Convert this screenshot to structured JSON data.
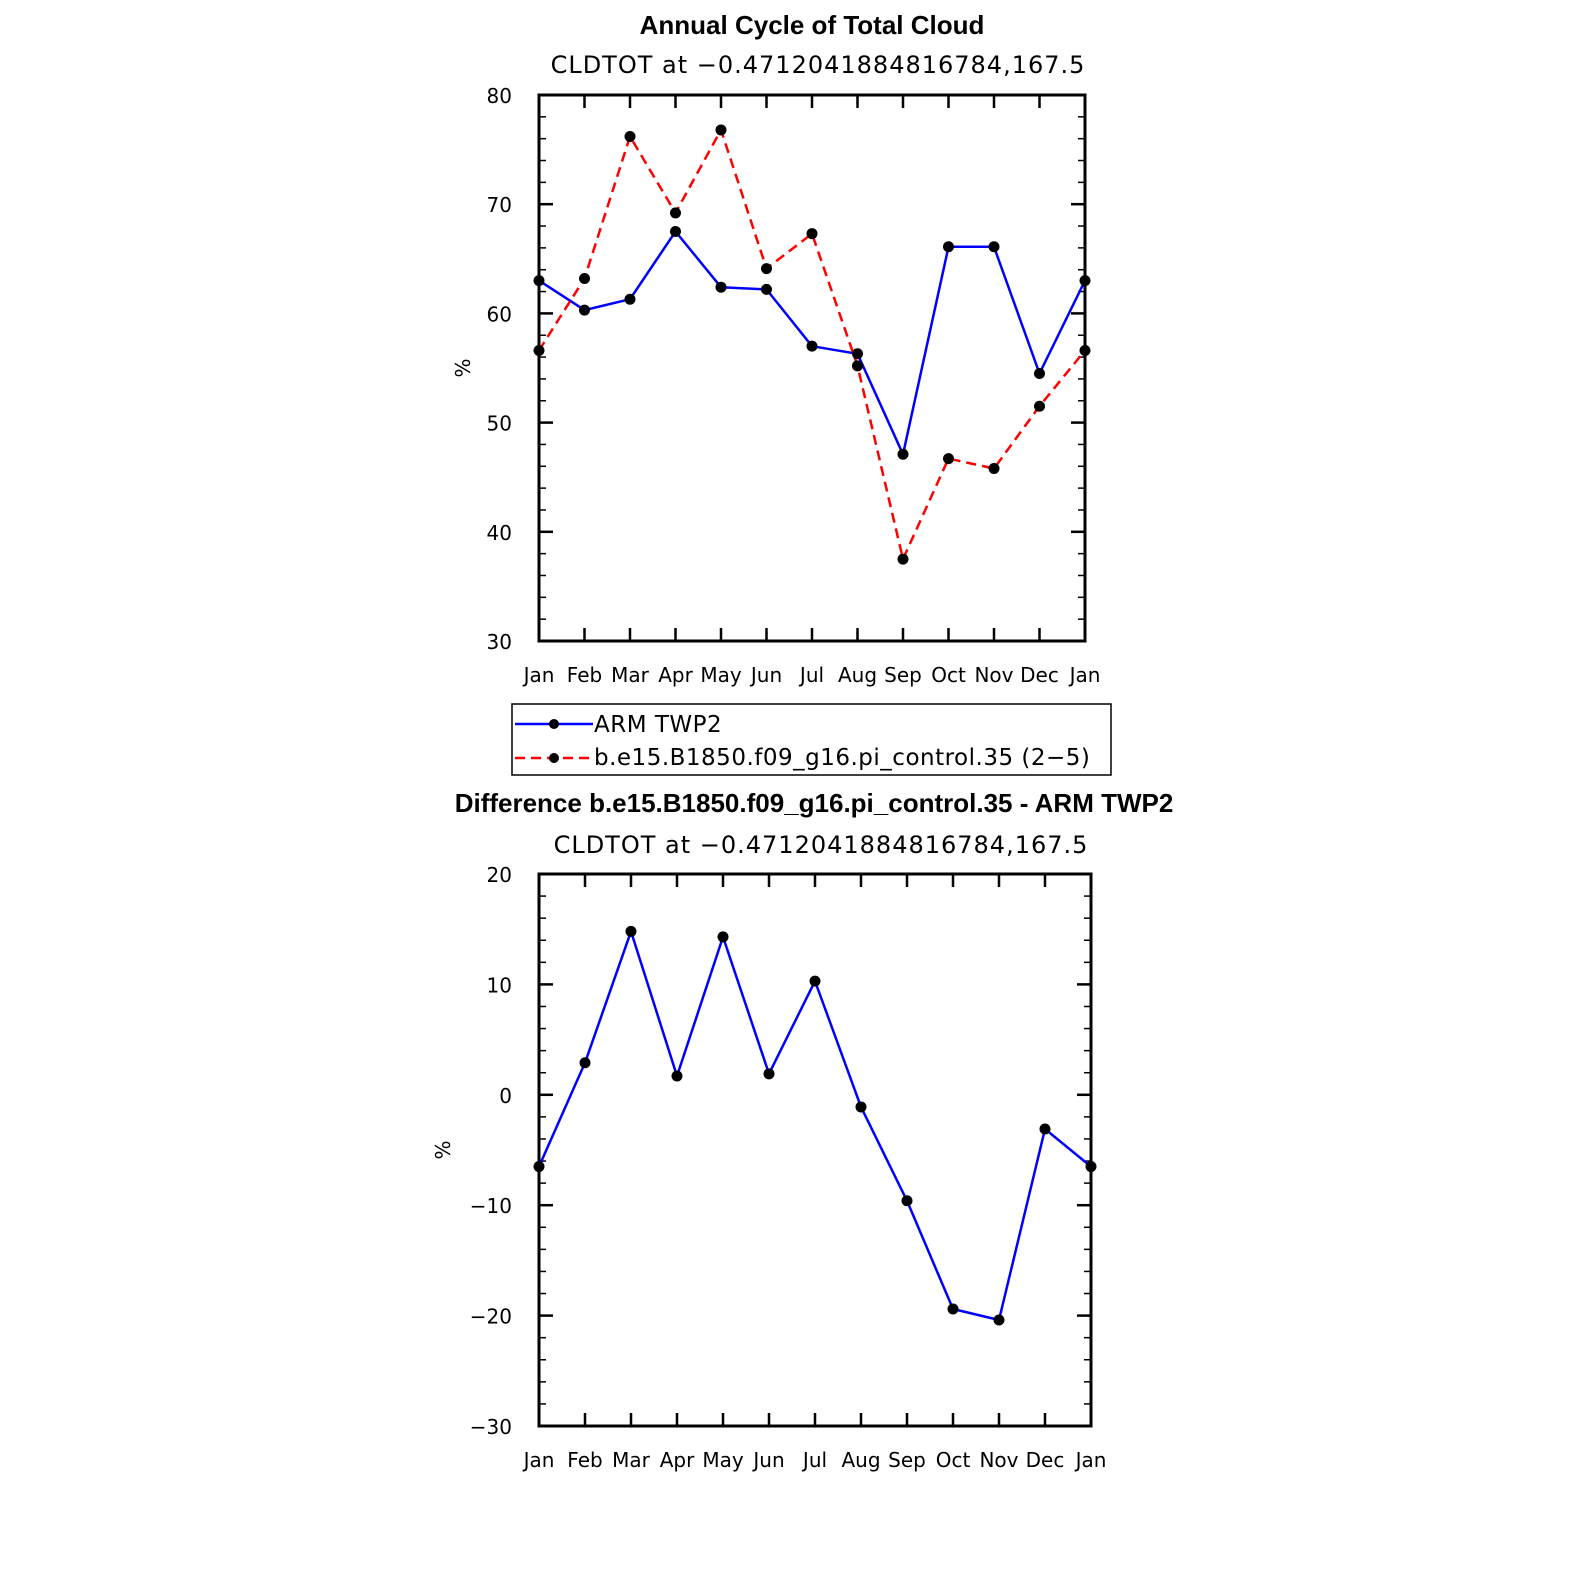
{
  "chart_data": [
    {
      "type": "line",
      "title": "Annual Cycle of Total Cloud",
      "subtitle": "CLDTOT at −0.4712041884816784,167.5",
      "ylabel": "%",
      "xlabel": "",
      "categories": [
        "Jan",
        "Feb",
        "Mar",
        "Apr",
        "May",
        "Jun",
        "Jul",
        "Aug",
        "Sep",
        "Oct",
        "Nov",
        "Dec",
        "Jan"
      ],
      "ylim": [
        30,
        80
      ],
      "yticks": [
        30,
        40,
        50,
        60,
        70,
        80
      ],
      "yticks_labels": [
        "30",
        "40",
        "50",
        "60",
        "70",
        "80"
      ],
      "grid": false,
      "legend_position": "below",
      "series": [
        {
          "name": "ARM TWP2",
          "color": "#0000ff",
          "style": "solid",
          "values": [
            63.0,
            60.3,
            61.3,
            67.5,
            62.4,
            62.2,
            57.0,
            56.3,
            47.1,
            66.1,
            66.1,
            54.5,
            63.0
          ]
        },
        {
          "name": "b.e15.B1850.f09_g16.pi_control.35 (2−5)",
          "color": "#ff0000",
          "style": "dashed",
          "values": [
            56.6,
            63.2,
            76.2,
            69.2,
            76.8,
            64.1,
            67.3,
            55.2,
            37.5,
            46.7,
            45.8,
            51.5,
            56.6
          ]
        }
      ]
    },
    {
      "type": "line",
      "title": "Difference b.e15.B1850.f09_g16.pi_control.35 - ARM TWP2",
      "subtitle": "CLDTOT at −0.4712041884816784,167.5",
      "ylabel": "%",
      "xlabel": "",
      "categories": [
        "Jan",
        "Feb",
        "Mar",
        "Apr",
        "May",
        "Jun",
        "Jul",
        "Aug",
        "Sep",
        "Oct",
        "Nov",
        "Dec",
        "Jan"
      ],
      "ylim": [
        -30,
        20
      ],
      "yticks": [
        -30,
        -20,
        -10,
        0,
        10,
        20
      ],
      "yticks_labels": [
        "−30",
        "−20",
        "−10",
        "0",
        "10",
        "20"
      ],
      "grid": false,
      "series": [
        {
          "name": "Difference",
          "color": "#0000ff",
          "style": "solid",
          "values": [
            -6.5,
            2.9,
            14.8,
            1.7,
            14.3,
            1.9,
            10.3,
            -1.1,
            -9.6,
            -19.4,
            -20.4,
            -3.1,
            -6.5
          ]
        }
      ]
    }
  ]
}
